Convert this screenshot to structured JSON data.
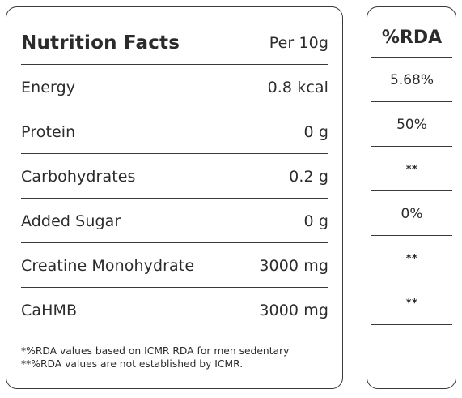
{
  "facts": {
    "title": "Nutrition Facts",
    "serving": "Per 10g",
    "rows": [
      {
        "label": "Energy",
        "value": "0.8 kcal"
      },
      {
        "label": "Protein",
        "value": "0 g"
      },
      {
        "label": "Carbohydrates",
        "value": "0.2 g"
      },
      {
        "label": "Added Sugar",
        "value": "0 g"
      },
      {
        "label": "Creatine Monohydrate",
        "value": "3000 mg"
      },
      {
        "label": "CaHMB",
        "value": "3000 mg"
      }
    ],
    "footnotes": [
      "*%RDA values based on ICMR RDA for men sedentary",
      "**%RDA values are not established by ICMR."
    ]
  },
  "rda": {
    "title": "%RDA",
    "values": [
      "5.68%",
      "50%",
      "**",
      "0%",
      "**",
      "**"
    ]
  },
  "colors": {
    "border": "#3a3a3a",
    "text": "#2b2b2b",
    "background": "#ffffff"
  }
}
